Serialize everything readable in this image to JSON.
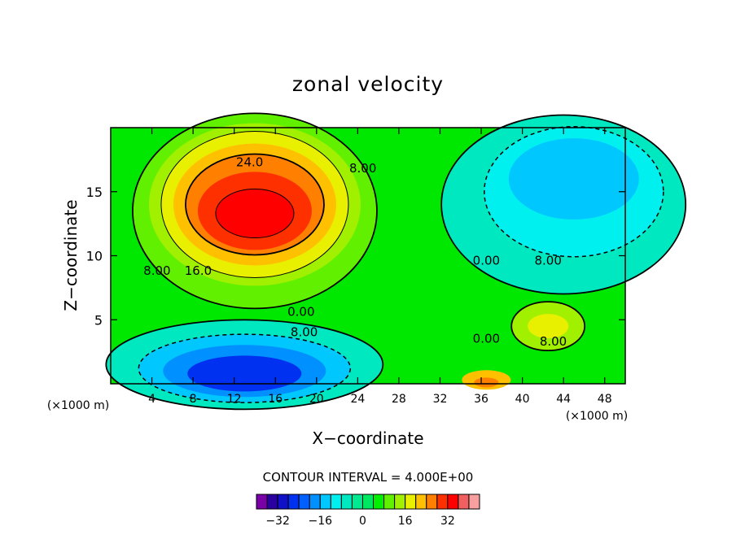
{
  "chart_data": {
    "type": "heatmap",
    "title": "zonal velocity",
    "xlabel": "X−coordinate",
    "ylabel": "Z−coordinate",
    "x_unit_label": "(×1000 m)",
    "y_unit_label": "(×1000 m)",
    "xlim": [
      0,
      50
    ],
    "ylim": [
      0,
      20
    ],
    "x_ticks": [
      "4",
      "8",
      "12",
      "16",
      "20",
      "24",
      "28",
      "32",
      "36",
      "40",
      "44",
      "48"
    ],
    "y_ticks": [
      "5",
      "10",
      "15"
    ],
    "contour_interval_text": "CONTOUR INTERVAL = 4.000E+00",
    "contour_labels": [
      "24.0",
      "8.00",
      "8.00",
      "16.0",
      "0.00",
      "8.00",
      "0.00",
      "8.00",
      "0.00",
      "8.00"
    ],
    "colorbar": {
      "levels": [
        -36,
        -32,
        -28,
        -24,
        -20,
        -16,
        -12,
        -8,
        -4,
        0,
        4,
        8,
        12,
        16,
        20,
        24,
        28,
        32,
        36
      ],
      "tick_labels": [
        "−32",
        "−16",
        "0",
        "16",
        "32"
      ],
      "colors": [
        "#7a00a8",
        "#2a00a0",
        "#1010c8",
        "#0030f0",
        "#0060ff",
        "#0090ff",
        "#00c8ff",
        "#00f0f0",
        "#00e8c0",
        "#00e890",
        "#00e860",
        "#00f000",
        "#60f000",
        "#a0f000",
        "#e8f000",
        "#ffc000",
        "#ff8000",
        "#ff3000",
        "#ff0000",
        "#f06060",
        "#f8a0a0"
      ]
    }
  }
}
